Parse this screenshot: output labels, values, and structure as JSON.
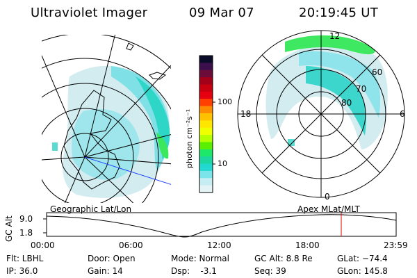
{
  "header": {
    "instrument": "Ultraviolet Imager",
    "date": "09 Mar 07",
    "time": "20:19:45 UT"
  },
  "colorbar": {
    "unit_label": "photon cm⁻²s⁻¹",
    "ticks": [
      "100",
      "10"
    ],
    "colors": [
      "#0b0b2a",
      "#3b0f4c",
      "#6b0c3a",
      "#a3001a",
      "#c8000f",
      "#e60010",
      "#ff4000",
      "#ff8c00",
      "#ffc200",
      "#ffe600",
      "#f0ff00",
      "#b4ff00",
      "#5cf000",
      "#1ee86a",
      "#1cd8a0",
      "#22d8d0",
      "#7ae4ea",
      "#c6eef2",
      "#e4f4f6"
    ]
  },
  "polar": {
    "labels": {
      "top": "12",
      "right": "6",
      "bottom": "0",
      "left": "18"
    },
    "lat_labels": [
      "60",
      "70",
      "80"
    ]
  },
  "timeline": {
    "title_left": "Geographic Lat/Lon",
    "title_right": "Apex  MLat/MLT",
    "yaxis_label": "GC Alt",
    "y_top": "9.0",
    "y_bottom": "1.8",
    "x_ticks": [
      "00:00",
      "06:00",
      "12:00",
      "18:00",
      "23:59"
    ],
    "marker_color": "#e00000"
  },
  "status": {
    "filter": "Flt: LBHL",
    "ip": "IP: 36.0",
    "door": "Door: Open",
    "gain": "Gain: 14",
    "mode": "Mode: Normal",
    "dsp": "Dsp:    -3.1",
    "gc_alt": "GC Alt: 8.8 Re",
    "seq": "Seq: 39",
    "glat": "GLat: −74.4",
    "glon": "GLon: 145.8"
  }
}
